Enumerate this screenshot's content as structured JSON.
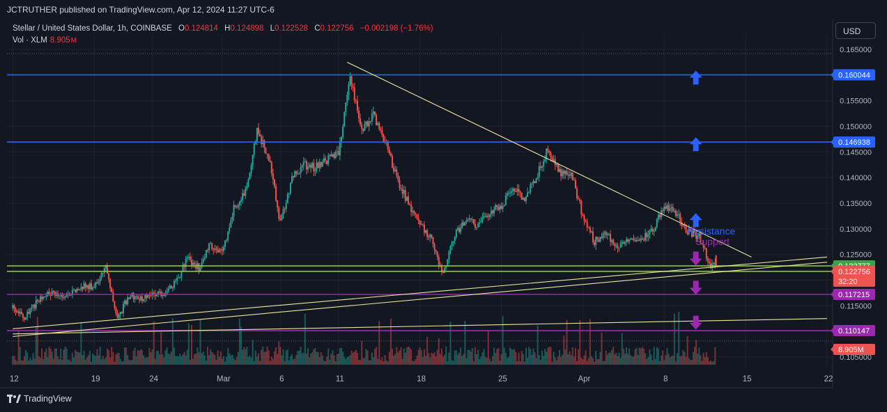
{
  "header": {
    "publisher_line": "JCTRUTHER published on TradingView.com, Apr 12, 2024 11:27 UTC-6"
  },
  "legend": {
    "symbol": "Stellar / United States Dollar, 1h, COINBASE",
    "o_label": "O",
    "o_value": "0.124814",
    "h_label": "H",
    "h_value": "0.124898",
    "l_label": "L",
    "l_value": "0.122528",
    "c_label": "C",
    "c_value": "0.122756",
    "change": "−0.002198 (−1.76%)",
    "vol_label": "Vol · XLM",
    "vol_value": "8.905",
    "vol_unit": "M"
  },
  "currency_button": "USD",
  "brand": "TradingView",
  "colors": {
    "background": "#131722",
    "up": "#26a69a",
    "down": "#ef5350",
    "resistance_line": "#2962ff",
    "support_line": "#9c27b0",
    "green_line": "#8bc34a",
    "trend_line": "#f0e6a0"
  },
  "chart_data": {
    "type": "candlestick",
    "symbol": "XLM/USD",
    "interval": "1h",
    "exchange": "COINBASE",
    "ylim": [
      0.1035,
      0.1665
    ],
    "x_tick_labels": [
      "12",
      "19",
      "24",
      "Mar",
      "6",
      "11",
      "18",
      "25",
      "Apr",
      "8",
      "15",
      "22"
    ],
    "y_tick_labels": [
      "0.165000",
      "0.160000",
      "0.155000",
      "0.150000",
      "0.145000",
      "0.140000",
      "0.135000",
      "0.130000",
      "0.125000",
      "0.120000",
      "0.115000",
      "0.110000",
      "0.105000"
    ],
    "close_path": [
      [
        "2024-02-12",
        0.1145
      ],
      [
        "2024-02-13",
        0.1125
      ],
      [
        "2024-02-14",
        0.1155
      ],
      [
        "2024-02-15",
        0.1175
      ],
      [
        "2024-02-16",
        0.117
      ],
      [
        "2024-02-17",
        0.1175
      ],
      [
        "2024-02-18",
        0.119
      ],
      [
        "2024-02-19",
        0.1185
      ],
      [
        "2024-02-20",
        0.1225
      ],
      [
        "2024-02-21",
        0.1125
      ],
      [
        "2024-02-22",
        0.117
      ],
      [
        "2024-02-23",
        0.1165
      ],
      [
        "2024-02-24",
        0.1175
      ],
      [
        "2024-02-25",
        0.1175
      ],
      [
        "2024-02-26",
        0.1195
      ],
      [
        "2024-02-27",
        0.124
      ],
      [
        "2024-02-28",
        0.1225
      ],
      [
        "2024-02-29",
        0.127
      ],
      [
        "2024-03-01",
        0.125
      ],
      [
        "2024-03-02",
        0.134
      ],
      [
        "2024-03-03",
        0.137
      ],
      [
        "2024-03-04",
        0.149
      ],
      [
        "2024-03-05",
        0.144
      ],
      [
        "2024-03-06",
        0.131
      ],
      [
        "2024-03-07",
        0.14
      ],
      [
        "2024-03-08",
        0.1425
      ],
      [
        "2024-03-09",
        0.142
      ],
      [
        "2024-03-10",
        0.1435
      ],
      [
        "2024-03-11",
        0.1445
      ],
      [
        "2024-03-12",
        0.16
      ],
      [
        "2024-03-13",
        0.149
      ],
      [
        "2024-03-14",
        0.152
      ],
      [
        "2024-03-15",
        0.147
      ],
      [
        "2024-03-16",
        0.14
      ],
      [
        "2024-03-17",
        0.135
      ],
      [
        "2024-03-18",
        0.131
      ],
      [
        "2024-03-19",
        0.128
      ],
      [
        "2024-03-20",
        0.121
      ],
      [
        "2024-03-21",
        0.129
      ],
      [
        "2024-03-22",
        0.132
      ],
      [
        "2024-03-23",
        0.1305
      ],
      [
        "2024-03-24",
        0.1335
      ],
      [
        "2024-03-25",
        0.1345
      ],
      [
        "2024-03-26",
        0.138
      ],
      [
        "2024-03-27",
        0.136
      ],
      [
        "2024-03-28",
        0.14
      ],
      [
        "2024-03-29",
        0.1455
      ],
      [
        "2024-03-30",
        0.141
      ],
      [
        "2024-03-31",
        0.141
      ],
      [
        "2024-04-01",
        0.1325
      ],
      [
        "2024-04-02",
        0.1275
      ],
      [
        "2024-04-03",
        0.129
      ],
      [
        "2024-04-04",
        0.1265
      ],
      [
        "2024-04-05",
        0.1285
      ],
      [
        "2024-04-06",
        0.128
      ],
      [
        "2024-04-07",
        0.1295
      ],
      [
        "2024-04-08",
        0.1345
      ],
      [
        "2024-04-09",
        0.133
      ],
      [
        "2024-04-10",
        0.1295
      ],
      [
        "2024-04-11",
        0.1285
      ],
      [
        "2024-04-12",
        0.1228
      ]
    ],
    "horizontal_levels": [
      {
        "price": 0.160044,
        "label": "0.160044",
        "kind": "resistance"
      },
      {
        "price": 0.146938,
        "label": "0.146938",
        "kind": "resistance"
      },
      {
        "price": 0.122777,
        "label": "0.122777",
        "kind": "green"
      },
      {
        "price": 0.121704,
        "label": "0.121704",
        "kind": "green"
      },
      {
        "price": 0.117215,
        "label": "0.117215",
        "kind": "support"
      },
      {
        "price": 0.110147,
        "label": "0.110147",
        "kind": "support"
      }
    ],
    "last_price": {
      "price": 0.122756,
      "label": "0.122756",
      "countdown": "32:20"
    },
    "volume_label": {
      "label": "8.905M"
    },
    "trend_lines": [
      {
        "from": [
          "2024-03-11 18:00",
          0.1625
        ],
        "to": [
          "2024-04-15 12:00",
          0.1245
        ]
      },
      {
        "from": [
          "2024-02-12 00:00",
          0.1105
        ],
        "to": [
          "2024-04-22 00:00",
          0.1245
        ]
      },
      {
        "from": [
          "2024-02-12 00:00",
          0.109
        ],
        "to": [
          "2024-04-22 00:00",
          0.1235
        ]
      },
      {
        "from": [
          "2024-02-12 00:00",
          0.1095
        ],
        "to": [
          "2024-04-22 00:00",
          0.1125
        ]
      }
    ],
    "annotations": [
      {
        "text": "Resistance",
        "color": "#2962ff"
      },
      {
        "text": "Support",
        "color": "#9c27b0"
      }
    ],
    "markers": [
      {
        "type": "up-arrow",
        "date": "2024-04-10",
        "price": 0.1595,
        "color": "#2962ff"
      },
      {
        "type": "up-arrow",
        "date": "2024-04-10",
        "price": 0.1465,
        "color": "#2962ff"
      },
      {
        "type": "up-arrow",
        "date": "2024-04-10",
        "price": 0.1317,
        "color": "#2962ff"
      },
      {
        "type": "down-arrow",
        "date": "2024-04-10",
        "price": 0.1242,
        "color": "#9c27b0"
      },
      {
        "type": "down-arrow",
        "date": "2024-04-10",
        "price": 0.1185,
        "color": "#9c27b0"
      },
      {
        "type": "down-arrow",
        "date": "2024-04-10",
        "price": 0.1117,
        "color": "#9c27b0"
      }
    ]
  }
}
